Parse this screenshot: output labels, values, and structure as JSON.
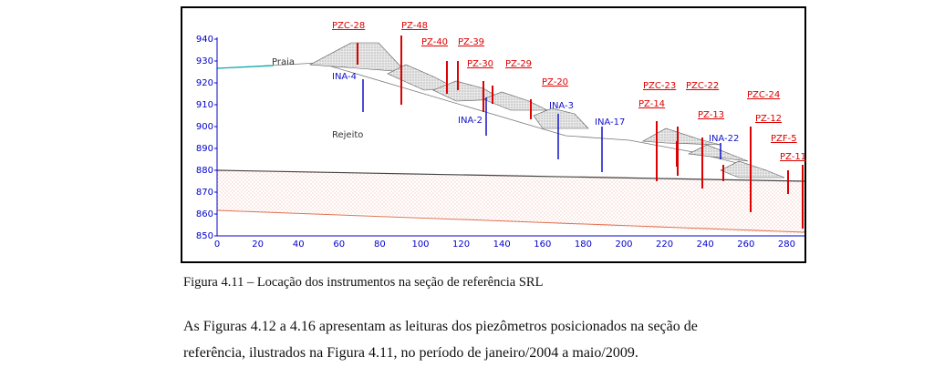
{
  "figure": {
    "y_ticks": [
      "940",
      "930",
      "920",
      "910",
      "900",
      "890",
      "880",
      "870",
      "860",
      "850"
    ],
    "x_ticks": [
      "0",
      "20",
      "40",
      "60",
      "80",
      "100",
      "120",
      "140",
      "160",
      "180",
      "200",
      "220",
      "240",
      "260",
      "280"
    ],
    "region_labels": {
      "praia": "Praia",
      "rejeito": "Rejeito"
    },
    "red_instruments": [
      "PZC-28",
      "PZ-48",
      "PZ-40",
      "PZ-39",
      "PZ-30",
      "PZ-29",
      "PZ-20",
      "PZC-23",
      "PZC-22",
      "PZ-14",
      "PZ-13",
      "PZC-24",
      "PZ-12",
      "PZF-5",
      "PZ-11"
    ],
    "blue_instruments": [
      "INA-4",
      "INA-2",
      "INA-3",
      "INA-17",
      "INA-22"
    ],
    "colors": {
      "axis": "#0000cc",
      "red": "#dd0000",
      "blue": "#1111cc",
      "praia": "#00aaaa"
    }
  },
  "caption": "Figura 4.11 – Locação dos instrumentos na seção de referência SRL",
  "paragraph": {
    "line1": "As Figuras 4.12 a 4.16 apresentam as leituras dos piezômetros posicionados na seção de",
    "line2": "referência, ilustrados na Figura 4.11, no período de janeiro/2004 a maio/2009."
  }
}
